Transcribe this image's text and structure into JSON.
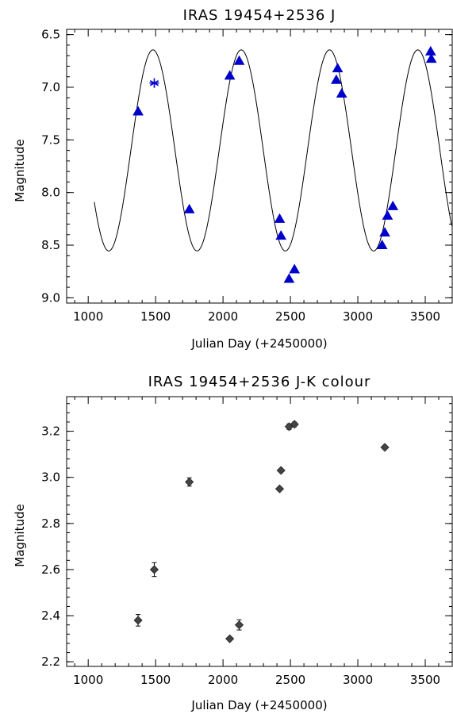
{
  "chart_data": [
    {
      "type": "scatter",
      "title": "IRAS 19454+2536 J",
      "xlabel": "Julian Day (+2450000)",
      "ylabel": "Magnitude",
      "xlim": [
        840,
        3700
      ],
      "ylim": [
        9.05,
        6.45
      ],
      "y_inverted": true,
      "xticks": [
        1000,
        1500,
        2000,
        2500,
        3000,
        3500
      ],
      "yticks": [
        6.5,
        7.0,
        7.5,
        8.0,
        8.5,
        9.0
      ],
      "ytick_labels": [
        "6.5",
        "7.0",
        "7.5",
        "8.0",
        "8.5",
        "9.0"
      ],
      "marker_color": "#0000cc",
      "series": [
        {
          "marker": "triangle",
          "x": [
            1370,
            1750,
            2050,
            2120,
            2420,
            2430,
            2490,
            2530,
            2840,
            2850,
            2880,
            3180,
            3200,
            3220,
            3260,
            3540,
            3545
          ],
          "y": [
            7.23,
            8.16,
            6.89,
            6.75,
            8.25,
            8.41,
            8.82,
            8.73,
            6.93,
            6.82,
            7.06,
            8.5,
            8.38,
            8.22,
            8.13,
            6.66,
            6.73
          ]
        },
        {
          "marker": "asterisk",
          "x": [
            1490
          ],
          "y": [
            6.96
          ]
        }
      ],
      "fit_curve": {
        "type": "sinusoid",
        "mean": 7.6,
        "amplitude": 0.955,
        "period": 655,
        "max_brightness_at": 1480,
        "x_start": 1045,
        "x_end": 3700
      }
    },
    {
      "type": "scatter",
      "title": "IRAS 19454+2536 J-K colour",
      "xlabel": "Julian Day (+2450000)",
      "ylabel": "Magnitude",
      "xlim": [
        840,
        3700
      ],
      "ylim": [
        2.18,
        3.35
      ],
      "xticks": [
        1000,
        1500,
        2000,
        2500,
        3000,
        3500
      ],
      "yticks": [
        2.2,
        2.4,
        2.6,
        2.8,
        3.0,
        3.2
      ],
      "ytick_labels": [
        "2.2",
        "2.4",
        "2.6",
        "2.8",
        "3.0",
        "3.2"
      ],
      "marker_color": "#444444",
      "series": [
        {
          "marker": "diamond",
          "x": [
            1370,
            1490,
            1750,
            2050,
            2120,
            2420,
            2430,
            2490,
            2530,
            3200
          ],
          "y": [
            2.38,
            2.6,
            2.98,
            2.3,
            2.36,
            2.95,
            3.03,
            3.22,
            3.23,
            3.13
          ],
          "yerr": [
            0.025,
            0.03,
            0.018,
            0.0,
            0.022,
            0.0,
            0.0,
            0.012,
            0.01,
            0.0
          ]
        }
      ]
    }
  ]
}
